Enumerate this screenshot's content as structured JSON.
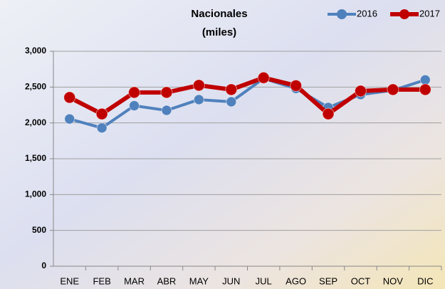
{
  "chart_data": {
    "type": "line",
    "title": "Nacionales",
    "subtitle": "(miles)",
    "categories": [
      "ENE",
      "FEB",
      "MAR",
      "ABR",
      "MAY",
      "JUN",
      "JUL",
      "AGO",
      "SEP",
      "OCT",
      "NOV",
      "DIC"
    ],
    "series": [
      {
        "name": "2016",
        "color": "#4f81bd",
        "values": [
          2055,
          1930,
          2240,
          2175,
          2325,
          2295,
          2620,
          2480,
          2215,
          2395,
          2455,
          2600
        ]
      },
      {
        "name": "2017",
        "color": "#c00000",
        "values": [
          2355,
          2125,
          2425,
          2425,
          2525,
          2465,
          2630,
          2520,
          2125,
          2445,
          2465,
          2465
        ]
      }
    ],
    "ylim": [
      0,
      3000
    ],
    "yticks": [
      0,
      500,
      {
        "value": 1000,
        "label": "1,000"
      },
      {
        "value": 1500,
        "label": "1,500"
      },
      {
        "value": 2000,
        "label": "2,000"
      },
      {
        "value": 2500,
        "label": "2,500"
      },
      {
        "value": 3000,
        "label": "3,000"
      }
    ],
    "grid": true,
    "legend": "top-right"
  }
}
